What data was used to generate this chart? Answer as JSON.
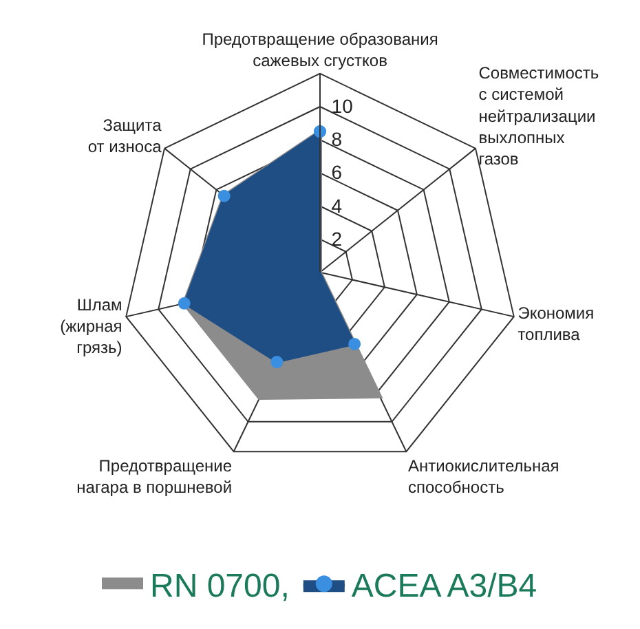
{
  "chart_data": {
    "type": "radar",
    "categories": [
      "Предотвращение образования\nсажевых сгустков",
      "Совместимость\nс системой\nнейтрализации\nвыхлопных\nгазов",
      "Экономия\nтоплива",
      "Антиокислительная\nспособность",
      "Предотвращение\nнагара в поршневой",
      "Шлам\n(жирная\nгрязь)",
      "Защита\nот износа"
    ],
    "series": [
      {
        "name": "RN 0700,",
        "color": "#8c8c8c",
        "marker": "none",
        "values": [
          8.5,
          0,
          0,
          8.3,
          8.4,
          8.4,
          7.4
        ]
      },
      {
        "name": "ACEA A3/B4",
        "color": "#1f4e85",
        "marker": "circle",
        "values": [
          8.5,
          0,
          0,
          4.8,
          6,
          8.4,
          7.4
        ]
      }
    ],
    "ylim": [
      0,
      12
    ],
    "yticks": [
      2,
      4,
      6,
      8,
      10
    ],
    "grid": true,
    "legend": "bottom"
  }
}
